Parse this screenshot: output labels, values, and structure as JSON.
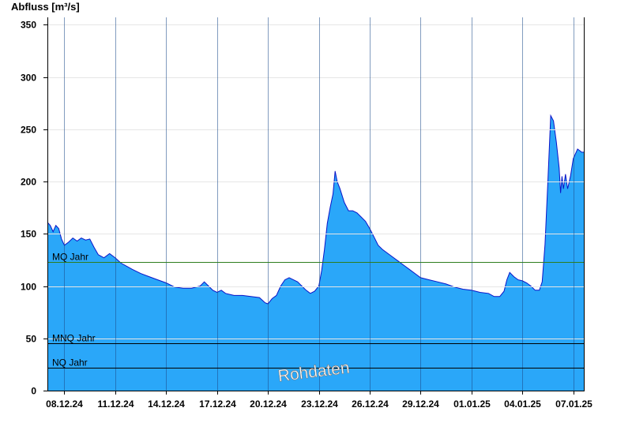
{
  "chart_data": {
    "type": "area",
    "ylabel": "Abfluss [m³/s]",
    "ylim": [
      0,
      357
    ],
    "yticks": [
      0,
      50,
      100,
      150,
      200,
      250,
      300,
      350
    ],
    "x_start": "2024-12-07T00:00",
    "x_end": "2025-01-07T16:00",
    "xticks": [
      {
        "date": "2024-12-08",
        "label": "08.12.24"
      },
      {
        "date": "2024-12-11",
        "label": "11.12.24"
      },
      {
        "date": "2024-12-14",
        "label": "14.12.24"
      },
      {
        "date": "2024-12-17",
        "label": "17.12.24"
      },
      {
        "date": "2024-12-20",
        "label": "20.12.24"
      },
      {
        "date": "2024-12-23",
        "label": "23.12.24"
      },
      {
        "date": "2024-12-26",
        "label": "26.12.24"
      },
      {
        "date": "2024-12-29",
        "label": "29.12.24"
      },
      {
        "date": "2025-01-01",
        "label": "01.01.25"
      },
      {
        "date": "2025-01-04",
        "label": "04.01.25"
      },
      {
        "date": "2025-01-07",
        "label": "07.01.25"
      }
    ],
    "reference_lines": [
      {
        "label": "MQ Jahr",
        "value": 123,
        "color": "#2e7d1e"
      },
      {
        "label": "MNQ Jahr",
        "value": 45,
        "color": "#000000"
      },
      {
        "label": "NQ Jahr",
        "value": 22,
        "color": "#000000"
      }
    ],
    "watermark": "Rohdaten",
    "series": [
      {
        "fill_color": "#2aa7f9",
        "line_color": "#0a14c8",
        "points": [
          [
            "2024-12-07T00:00",
            161
          ],
          [
            "2024-12-07T04:00",
            158
          ],
          [
            "2024-12-07T08:00",
            152
          ],
          [
            "2024-12-07T12:00",
            158
          ],
          [
            "2024-12-07T16:00",
            155
          ],
          [
            "2024-12-07T20:00",
            145
          ],
          [
            "2024-12-08T00:00",
            139
          ],
          [
            "2024-12-08T06:00",
            142
          ],
          [
            "2024-12-08T12:00",
            146
          ],
          [
            "2024-12-08T18:00",
            143
          ],
          [
            "2024-12-09T00:00",
            146
          ],
          [
            "2024-12-09T06:00",
            144
          ],
          [
            "2024-12-09T12:00",
            145
          ],
          [
            "2024-12-09T18:00",
            137
          ],
          [
            "2024-12-10T00:00",
            130
          ],
          [
            "2024-12-10T08:00",
            127
          ],
          [
            "2024-12-10T16:00",
            131
          ],
          [
            "2024-12-11T00:00",
            127
          ],
          [
            "2024-12-11T08:00",
            122
          ],
          [
            "2024-12-11T16:00",
            119
          ],
          [
            "2024-12-12T00:00",
            116
          ],
          [
            "2024-12-12T12:00",
            112
          ],
          [
            "2024-12-13T00:00",
            109
          ],
          [
            "2024-12-13T12:00",
            106
          ],
          [
            "2024-12-14T00:00",
            103
          ],
          [
            "2024-12-14T12:00",
            99
          ],
          [
            "2024-12-15T00:00",
            98
          ],
          [
            "2024-12-15T12:00",
            98
          ],
          [
            "2024-12-16T00:00",
            100
          ],
          [
            "2024-12-16T06:00",
            104
          ],
          [
            "2024-12-16T12:00",
            100
          ],
          [
            "2024-12-16T18:00",
            96
          ],
          [
            "2024-12-17T00:00",
            94
          ],
          [
            "2024-12-17T06:00",
            96
          ],
          [
            "2024-12-17T12:00",
            93
          ],
          [
            "2024-12-17T18:00",
            92
          ],
          [
            "2024-12-18T00:00",
            91
          ],
          [
            "2024-12-18T12:00",
            91
          ],
          [
            "2024-12-19T00:00",
            90
          ],
          [
            "2024-12-19T12:00",
            89
          ],
          [
            "2024-12-19T20:00",
            84
          ],
          [
            "2024-12-20T00:00",
            83
          ],
          [
            "2024-12-20T06:00",
            88
          ],
          [
            "2024-12-20T12:00",
            91
          ],
          [
            "2024-12-20T18:00",
            100
          ],
          [
            "2024-12-21T00:00",
            106
          ],
          [
            "2024-12-21T06:00",
            108
          ],
          [
            "2024-12-21T12:00",
            106
          ],
          [
            "2024-12-21T18:00",
            104
          ],
          [
            "2024-12-22T00:00",
            100
          ],
          [
            "2024-12-22T06:00",
            96
          ],
          [
            "2024-12-22T12:00",
            93
          ],
          [
            "2024-12-22T18:00",
            95
          ],
          [
            "2024-12-23T00:00",
            100
          ],
          [
            "2024-12-23T04:00",
            115
          ],
          [
            "2024-12-23T08:00",
            135
          ],
          [
            "2024-12-23T12:00",
            160
          ],
          [
            "2024-12-23T16:00",
            175
          ],
          [
            "2024-12-23T20:00",
            188
          ],
          [
            "2024-12-23T23:00",
            210
          ],
          [
            "2024-12-24T02:00",
            200
          ],
          [
            "2024-12-24T06:00",
            193
          ],
          [
            "2024-12-24T12:00",
            180
          ],
          [
            "2024-12-24T18:00",
            172
          ],
          [
            "2024-12-25T00:00",
            172
          ],
          [
            "2024-12-25T06:00",
            170
          ],
          [
            "2024-12-25T12:00",
            166
          ],
          [
            "2024-12-25T18:00",
            162
          ],
          [
            "2024-12-26T00:00",
            155
          ],
          [
            "2024-12-26T06:00",
            147
          ],
          [
            "2024-12-26T12:00",
            139
          ],
          [
            "2024-12-26T18:00",
            135
          ],
          [
            "2024-12-27T00:00",
            132
          ],
          [
            "2024-12-27T08:00",
            128
          ],
          [
            "2024-12-27T16:00",
            124
          ],
          [
            "2024-12-28T00:00",
            120
          ],
          [
            "2024-12-28T08:00",
            116
          ],
          [
            "2024-12-28T16:00",
            112
          ],
          [
            "2024-12-29T00:00",
            108
          ],
          [
            "2024-12-29T12:00",
            106
          ],
          [
            "2024-12-30T00:00",
            104
          ],
          [
            "2024-12-30T12:00",
            102
          ],
          [
            "2024-12-31T00:00",
            99
          ],
          [
            "2024-12-31T12:00",
            97
          ],
          [
            "2025-01-01T00:00",
            96
          ],
          [
            "2025-01-01T12:00",
            94
          ],
          [
            "2025-01-02T00:00",
            93
          ],
          [
            "2025-01-02T08:00",
            90
          ],
          [
            "2025-01-02T16:00",
            90
          ],
          [
            "2025-01-02T22:00",
            95
          ],
          [
            "2025-01-03T02:00",
            106
          ],
          [
            "2025-01-03T06:00",
            113
          ],
          [
            "2025-01-03T12:00",
            109
          ],
          [
            "2025-01-03T18:00",
            106
          ],
          [
            "2025-01-04T00:00",
            105
          ],
          [
            "2025-01-04T06:00",
            103
          ],
          [
            "2025-01-04T12:00",
            100
          ],
          [
            "2025-01-04T18:00",
            96
          ],
          [
            "2025-01-05T00:00",
            96
          ],
          [
            "2025-01-05T04:00",
            104
          ],
          [
            "2025-01-05T08:00",
            140
          ],
          [
            "2025-01-05T12:00",
            200
          ],
          [
            "2025-01-05T16:00",
            263
          ],
          [
            "2025-01-05T20:00",
            258
          ],
          [
            "2025-01-06T00:00",
            238
          ],
          [
            "2025-01-06T04:00",
            213
          ],
          [
            "2025-01-06T06:00",
            189
          ],
          [
            "2025-01-06T08:00",
            205
          ],
          [
            "2025-01-06T10:00",
            193
          ],
          [
            "2025-01-06T13:00",
            207
          ],
          [
            "2025-01-06T16:00",
            193
          ],
          [
            "2025-01-06T20:00",
            205
          ],
          [
            "2025-01-07T00:00",
            222
          ],
          [
            "2025-01-07T06:00",
            231
          ],
          [
            "2025-01-07T12:00",
            228
          ],
          [
            "2025-01-07T16:00",
            228
          ]
        ]
      }
    ]
  }
}
